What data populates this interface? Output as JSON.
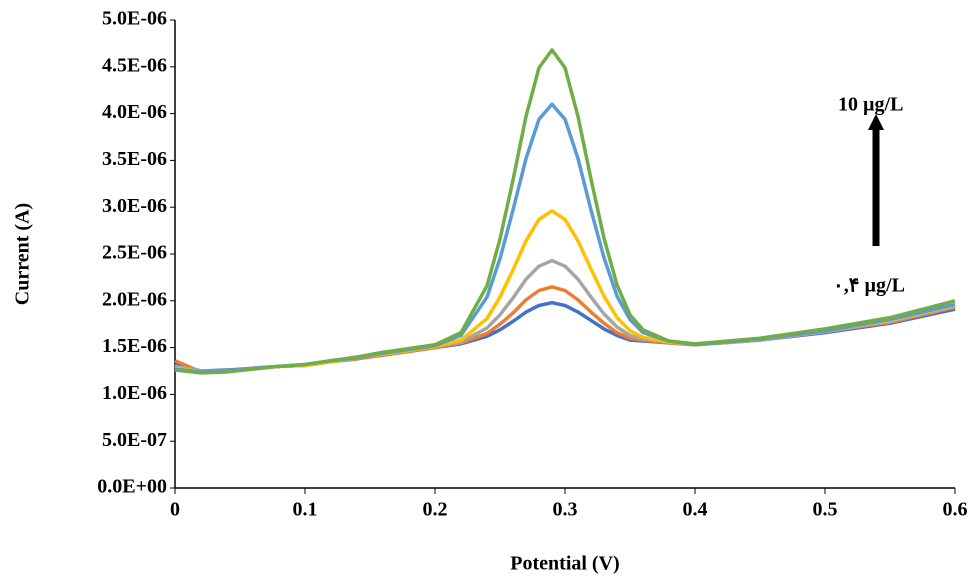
{
  "chart_data": {
    "type": "line",
    "xlabel": "Potential (V)",
    "ylabel": "Current (A)",
    "annotations": [
      "10 µg/L",
      "۰,۴ µg/L"
    ],
    "x": [
      0,
      0.02,
      0.04,
      0.06,
      0.08,
      0.1,
      0.12,
      0.14,
      0.16,
      0.18,
      0.2,
      0.22,
      0.24,
      0.25,
      0.26,
      0.27,
      0.28,
      0.29,
      0.3,
      0.31,
      0.32,
      0.33,
      0.34,
      0.35,
      0.36,
      0.38,
      0.4,
      0.45,
      0.5,
      0.55,
      0.6
    ],
    "series": [
      {
        "color": "#4472c4",
        "values": [
          1.32e-06,
          1.25e-06,
          1.26e-06,
          1.28e-06,
          1.3e-06,
          1.31e-06,
          1.35e-06,
          1.38e-06,
          1.42e-06,
          1.46e-06,
          1.5e-06,
          1.54e-06,
          1.62e-06,
          1.69e-06,
          1.78e-06,
          1.88e-06,
          1.95e-06,
          1.98e-06,
          1.95e-06,
          1.88e-06,
          1.79e-06,
          1.7e-06,
          1.63e-06,
          1.58e-06,
          1.57e-06,
          1.55e-06,
          1.53e-06,
          1.58e-06,
          1.66e-06,
          1.76e-06,
          1.91e-06
        ]
      },
      {
        "color": "#ed7d31",
        "values": [
          1.36e-06,
          1.24e-06,
          1.25e-06,
          1.27e-06,
          1.3e-06,
          1.31e-06,
          1.35e-06,
          1.38e-06,
          1.42e-06,
          1.46e-06,
          1.5e-06,
          1.55e-06,
          1.65e-06,
          1.75e-06,
          1.87e-06,
          2.01e-06,
          2.11e-06,
          2.15e-06,
          2.11e-06,
          2.01e-06,
          1.88e-06,
          1.76e-06,
          1.66e-06,
          1.6e-06,
          1.58e-06,
          1.55e-06,
          1.53e-06,
          1.58e-06,
          1.67e-06,
          1.77e-06,
          1.93e-06
        ]
      },
      {
        "color": "#a5a5a5",
        "values": [
          1.3e-06,
          1.25e-06,
          1.25e-06,
          1.28e-06,
          1.3e-06,
          1.31e-06,
          1.35e-06,
          1.39e-06,
          1.43e-06,
          1.47e-06,
          1.51e-06,
          1.56e-06,
          1.71e-06,
          1.85e-06,
          2.03e-06,
          2.23e-06,
          2.37e-06,
          2.43e-06,
          2.37e-06,
          2.23e-06,
          2.04e-06,
          1.86e-06,
          1.72e-06,
          1.63e-06,
          1.59e-06,
          1.56e-06,
          1.53e-06,
          1.58e-06,
          1.67e-06,
          1.78e-06,
          1.94e-06
        ]
      },
      {
        "color": "#ffc000",
        "values": [
          1.28e-06,
          1.24e-06,
          1.25e-06,
          1.28e-06,
          1.3e-06,
          1.31e-06,
          1.35e-06,
          1.39e-06,
          1.43e-06,
          1.47e-06,
          1.51e-06,
          1.58e-06,
          1.81e-06,
          2.04e-06,
          2.33e-06,
          2.64e-06,
          2.87e-06,
          2.96e-06,
          2.87e-06,
          2.64e-06,
          2.34e-06,
          2.05e-06,
          1.82e-06,
          1.68e-06,
          1.61e-06,
          1.56e-06,
          1.53e-06,
          1.59e-06,
          1.68e-06,
          1.79e-06,
          1.95e-06
        ]
      },
      {
        "color": "#5b9bd5",
        "values": [
          1.27e-06,
          1.24e-06,
          1.25e-06,
          1.28e-06,
          1.3e-06,
          1.32e-06,
          1.36e-06,
          1.39e-06,
          1.44e-06,
          1.48e-06,
          1.52e-06,
          1.63e-06,
          2.04e-06,
          2.45e-06,
          2.97e-06,
          3.52e-06,
          3.94e-06,
          4.1e-06,
          3.94e-06,
          3.52e-06,
          2.97e-06,
          2.46e-06,
          2.05e-06,
          1.8e-06,
          1.66e-06,
          1.57e-06,
          1.53e-06,
          1.59e-06,
          1.68e-06,
          1.8e-06,
          1.96e-06
        ]
      },
      {
        "color": "#70ad47",
        "values": [
          1.26e-06,
          1.23e-06,
          1.24e-06,
          1.27e-06,
          1.3e-06,
          1.32e-06,
          1.36e-06,
          1.4e-06,
          1.45e-06,
          1.49e-06,
          1.53e-06,
          1.66e-06,
          2.16e-06,
          2.66e-06,
          3.29e-06,
          3.97e-06,
          4.49e-06,
          4.68e-06,
          4.49e-06,
          3.97e-06,
          3.3e-06,
          2.67e-06,
          2.17e-06,
          1.85e-06,
          1.69e-06,
          1.57e-06,
          1.54e-06,
          1.6e-06,
          1.7e-06,
          1.82e-06,
          2e-06
        ]
      }
    ],
    "xlim": [
      0,
      0.6
    ],
    "xticks": [
      0,
      0.1,
      0.2,
      0.3,
      0.4,
      0.5,
      0.6
    ],
    "ylim": [
      0,
      5e-06
    ],
    "yticks": [
      {
        "value": 0,
        "label": "0.0E+00"
      },
      {
        "value": 5e-07,
        "label": "5.0E-07"
      },
      {
        "value": 1e-06,
        "label": "1.0E-06"
      },
      {
        "value": 1.5e-06,
        "label": "1.5E-06"
      },
      {
        "value": 2e-06,
        "label": "2.0E-06"
      },
      {
        "value": 2.5e-06,
        "label": "2.5E-06"
      },
      {
        "value": 3e-06,
        "label": "3.0E-06"
      },
      {
        "value": 3.5e-06,
        "label": "3.5E-06"
      },
      {
        "value": 4e-06,
        "label": "4.0E-06"
      },
      {
        "value": 4.5e-06,
        "label": "4.5E-06"
      },
      {
        "value": 5e-06,
        "label": "5.0E-06"
      }
    ],
    "grid": false
  }
}
